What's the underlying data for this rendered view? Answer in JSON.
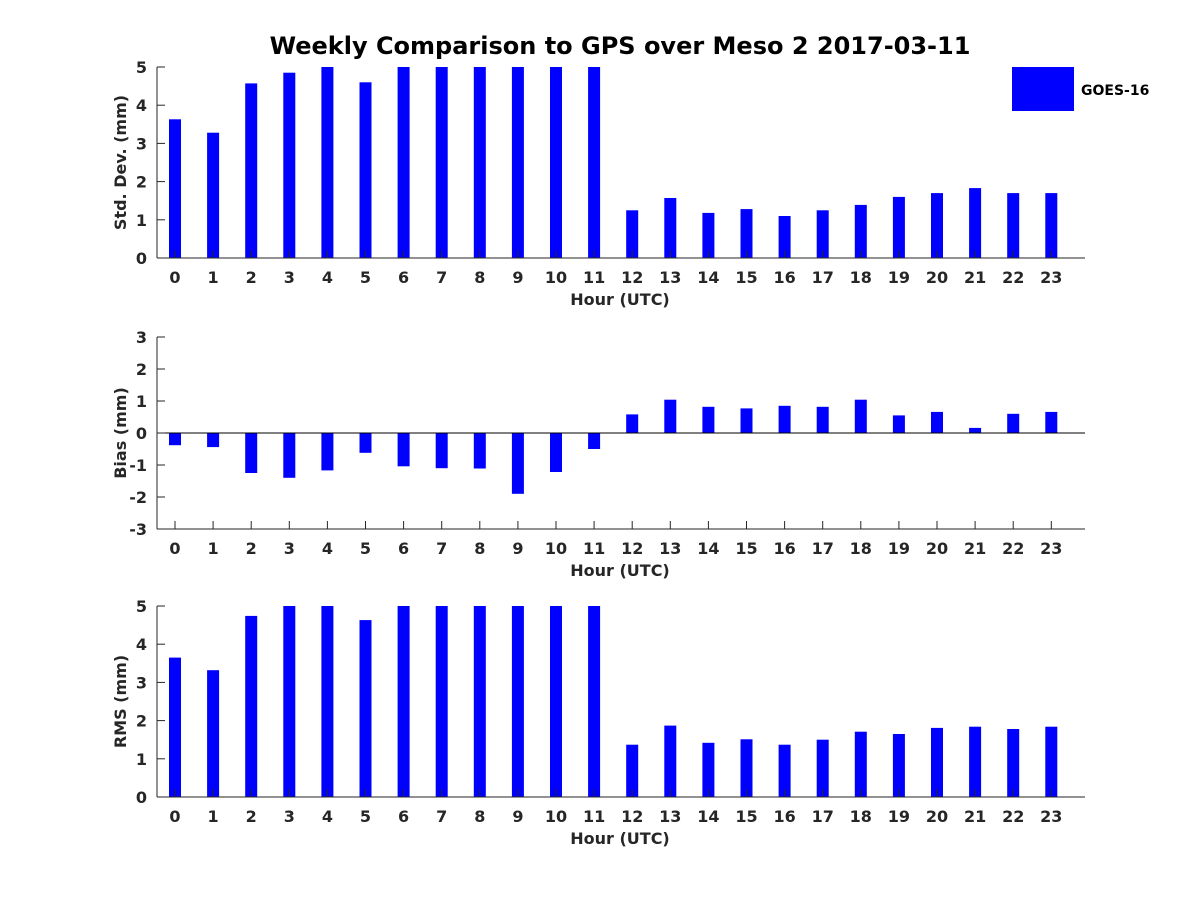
{
  "chart_data": {
    "type": "bar",
    "title": "Weekly Comparison to GPS over Meso 2 2017-03-11",
    "legend": {
      "label": "GOES-16",
      "position": "top-right",
      "color": "#0000ff"
    },
    "categories": [
      "0",
      "1",
      "2",
      "3",
      "4",
      "5",
      "6",
      "7",
      "8",
      "9",
      "10",
      "11",
      "12",
      "13",
      "14",
      "15",
      "16",
      "17",
      "18",
      "19",
      "20",
      "21",
      "22",
      "23"
    ],
    "panels": [
      {
        "xlabel": "Hour (UTC)",
        "ylabel": "Std. Dev. (mm)",
        "ylim": [
          0,
          5
        ],
        "yticks": [
          "0",
          "1",
          "2",
          "3",
          "4",
          "5"
        ],
        "series": [
          {
            "name": "GOES-16",
            "values": [
              3.63,
              3.28,
              4.57,
              4.85,
              5.0,
              4.6,
              5.0,
              5.0,
              5.0,
              5.0,
              5.0,
              5.0,
              1.25,
              1.57,
              1.18,
              1.28,
              1.1,
              1.25,
              1.39,
              1.6,
              1.7,
              1.83,
              1.7,
              1.7
            ]
          }
        ]
      },
      {
        "xlabel": "Hour (UTC)",
        "ylabel": "Bias (mm)",
        "ylim": [
          -3,
          3
        ],
        "yticks": [
          "-3",
          "-2",
          "-1",
          "0",
          "1",
          "2",
          "3"
        ],
        "series": [
          {
            "name": "GOES-16",
            "values": [
              -0.38,
              -0.44,
              -1.25,
              -1.4,
              -1.17,
              -0.62,
              -1.04,
              -1.1,
              -1.11,
              -1.9,
              -1.22,
              -0.5,
              0.58,
              1.04,
              0.82,
              0.77,
              0.85,
              0.82,
              1.04,
              0.55,
              0.66,
              0.16,
              0.6,
              0.66
            ]
          }
        ]
      },
      {
        "xlabel": "Hour (UTC)",
        "ylabel": "RMS (mm)",
        "ylim": [
          0,
          5
        ],
        "yticks": [
          "0",
          "1",
          "2",
          "3",
          "4",
          "5"
        ],
        "series": [
          {
            "name": "GOES-16",
            "values": [
              3.65,
              3.32,
              4.74,
              5.0,
              5.0,
              4.63,
              5.0,
              5.0,
              5.0,
              5.0,
              5.0,
              5.0,
              1.37,
              1.87,
              1.42,
              1.51,
              1.37,
              1.5,
              1.71,
              1.65,
              1.81,
              1.84,
              1.78,
              1.84
            ]
          }
        ]
      }
    ]
  }
}
